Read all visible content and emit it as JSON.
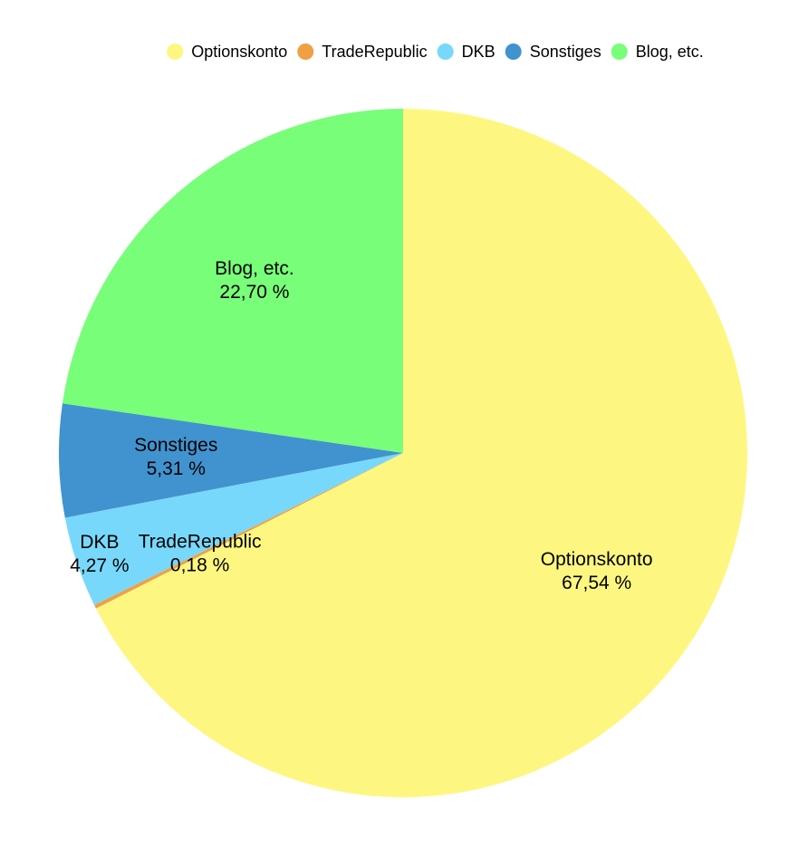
{
  "chart_data": {
    "type": "pie",
    "categories": [
      "Optionskonto",
      "TradeRepublic",
      "DKB",
      "Sonstiges",
      "Blog, etc."
    ],
    "values": [
      67.54,
      0.18,
      4.27,
      5.31,
      22.7
    ],
    "value_labels": [
      "67,54 %",
      "0,18 %",
      "4,27 %",
      "5,31 %",
      "22,70 %"
    ],
    "colors": [
      "#fdf781",
      "#f0a043",
      "#78d8fb",
      "#4193cf",
      "#78fe78"
    ],
    "legend": "top"
  }
}
